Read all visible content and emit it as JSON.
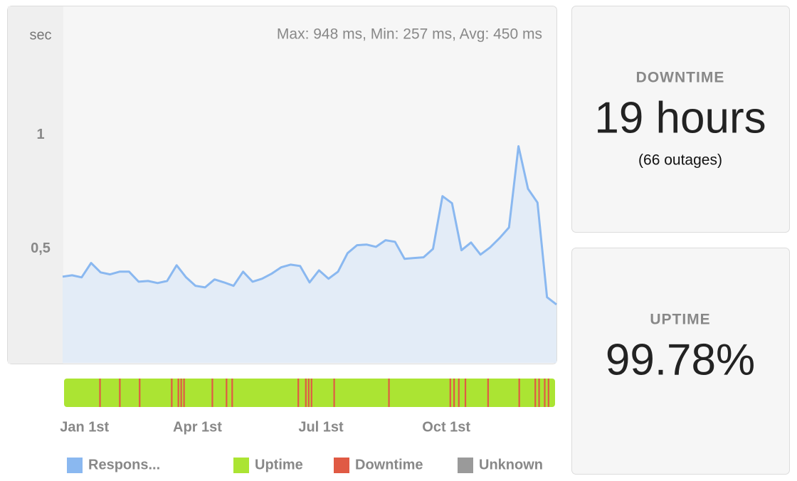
{
  "chart_data": {
    "type": "area",
    "ylabel": "sec",
    "subtitle": "Max: 948 ms, Min: 257 ms, Avg: 450 ms",
    "series": [
      {
        "name": "Respons...",
        "color": "#8ab8f0",
        "fill": "#e3ecf7",
        "values": [
          0.378,
          0.384,
          0.375,
          0.438,
          0.397,
          0.388,
          0.4,
          0.4,
          0.356,
          0.359,
          0.35,
          0.359,
          0.428,
          0.375,
          0.338,
          0.331,
          0.366,
          0.353,
          0.338,
          0.4,
          0.356,
          0.369,
          0.391,
          0.419,
          0.431,
          0.425,
          0.353,
          0.406,
          0.369,
          0.4,
          0.481,
          0.516,
          0.519,
          0.509,
          0.538,
          0.531,
          0.456,
          0.46,
          0.463,
          0.5,
          0.731,
          0.7,
          0.494,
          0.528,
          0.475,
          0.506,
          0.547,
          0.594,
          0.95,
          0.763,
          0.703,
          0.288,
          0.256
        ]
      }
    ],
    "xlim": [
      0,
      52
    ],
    "xticks": [
      {
        "value": 2.3,
        "label": "Jan 1st"
      },
      {
        "value": 14.2,
        "label": "Apr 1st"
      },
      {
        "value": 27.2,
        "label": "Jul 1st"
      },
      {
        "value": 40.4,
        "label": "Oct 1st"
      }
    ],
    "ylim": [
      0,
      1.56
    ],
    "yticks": [
      {
        "value": 0.5,
        "label": "0,5"
      },
      1
    ],
    "status": [
      {
        "name": "Uptime",
        "color": "#abe433"
      },
      {
        "name": "Downtime",
        "color": "#e05a44"
      },
      {
        "name": "Unknown",
        "color": "#9a9a9a"
      }
    ],
    "downtime_x": [
      3.8,
      5.9,
      8.0,
      11.4,
      12.1,
      12.4,
      12.7,
      15.7,
      17.2,
      17.8,
      24.8,
      25.6,
      25.9,
      26.2,
      28.6,
      34.4,
      40.9,
      41.3,
      41.8,
      42.5,
      44.9,
      48.2,
      49.9,
      50.3,
      50.9,
      51.3
    ]
  },
  "panels": [
    {
      "label": "DOWNTIME",
      "value": "19 hours",
      "note": "(66 outages)"
    },
    {
      "label": "UPTIME",
      "value": "99.78%"
    }
  ]
}
